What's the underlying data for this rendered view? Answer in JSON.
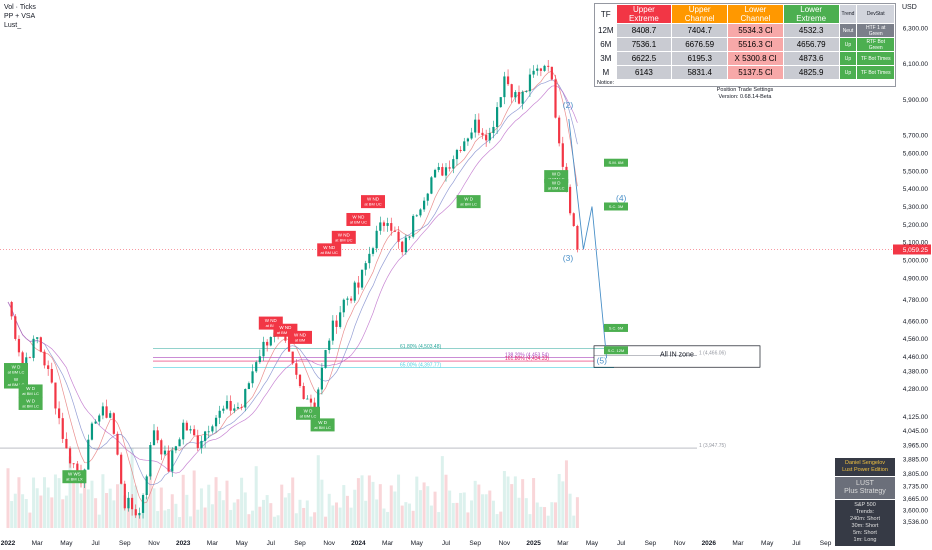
{
  "legend": [
    "Vol · Ticks",
    "PP + VSA",
    "Lust_"
  ],
  "currency": "USD",
  "price_axis": [
    "6,300.00",
    "6,100.00",
    "5,900.00",
    "5,700.00",
    "5,600.00",
    "5,500.00",
    "5,400.00",
    "5,300.00",
    "5,200.00",
    "5,100.00",
    "5,000.00",
    "4,900.00",
    "4,780.00",
    "4,660.00",
    "4,560.00",
    "4,460.00",
    "4,380.00",
    "4,280.00",
    "4,125.00",
    "4,045.00",
    "3,965.00",
    "3,885.00",
    "3,805.00",
    "3,735.00",
    "3,665.00",
    "3,600.00",
    "3,536.00"
  ],
  "price_axis_values": [
    6300,
    6100,
    5900,
    5700,
    5600,
    5500,
    5400,
    5300,
    5200,
    5100,
    5000,
    4900,
    4780,
    4660,
    4560,
    4460,
    4380,
    4280,
    4125,
    4045,
    3965,
    3885,
    3805,
    3735,
    3665,
    3600,
    3536
  ],
  "last_price": "5,059.25",
  "time_axis": [
    "2022",
    "Mar",
    "May",
    "Jul",
    "Sep",
    "Nov",
    "2023",
    "Mar",
    "May",
    "Jul",
    "Sep",
    "Nov",
    "2024",
    "Mar",
    "May",
    "Jul",
    "Sep",
    "Nov",
    "2025",
    "Mar",
    "May",
    "Jul",
    "Sep",
    "Nov",
    "2026",
    "Mar",
    "May",
    "Jul",
    "Sep",
    "Nov"
  ],
  "table": {
    "headers": [
      "TF",
      "Upper Extreme",
      "Upper Channel",
      "Lower Channel",
      "Lower Extreme",
      "Trend",
      "DevStat"
    ],
    "header_colors": [
      "#ffffff",
      "#f23645",
      "#ff9800",
      "#ff9800",
      "#4caf50",
      "#d1d4dc",
      "#d1d4dc"
    ],
    "rows": [
      {
        "tf": "12M",
        "ue": "8408.7",
        "uc": "7404.7",
        "lc": "5534.3 Cl",
        "le": "4532.3",
        "trend": "Neut",
        "dev": "HTF 1 at Green"
      },
      {
        "tf": "6M",
        "ue": "7536.1",
        "uc": "6676.59",
        "lc": "5516.3 Cl",
        "le": "4656.79",
        "trend": "Up",
        "dev": "RTF Bot Green"
      },
      {
        "tf": "3M",
        "ue": "6622.5",
        "uc": "6195.3",
        "lc": "X 5300.8 Cl",
        "le": "4873.6",
        "trend": "Up",
        "dev": "TF Bot Times"
      },
      {
        "tf": "M",
        "ue": "6143",
        "uc": "5831.4",
        "lc": "5137.5 Cl",
        "le": "4825.9",
        "trend": "Up",
        "dev": "TF Bot Times"
      }
    ],
    "notice_label": "Notice:",
    "notice_line1": "Position Trade Settings",
    "notice_line2": "Version: 0.68.14-Beta"
  },
  "info_box": {
    "title1": "Daniel Sengelov",
    "title2": "Lust Power Edition",
    "logo": "LUST",
    "sub": "Plus Strategy",
    "lines": [
      "S&P 500",
      "Trends:",
      "240m: Short",
      "30m: Short",
      "5m: Short",
      "1m: Long"
    ]
  },
  "colors": {
    "bull": "#089981",
    "bear": "#f23645",
    "green_label": "#4caf50",
    "red_label": "#f23645",
    "fib_green": "#26a69a",
    "fib_cyan": "#4dd0e1",
    "fib_purple": "#ab47bc",
    "fib_pink": "#e91e63",
    "projection": "#4a90c8"
  },
  "chart_data": {
    "type": "candlestick",
    "x_range": [
      "2022-01",
      "2026-12"
    ],
    "ylim": [
      3500,
      6400
    ],
    "price_path": [
      [
        "2022-01",
        4766
      ],
      [
        "2022-02",
        4420
      ],
      [
        "2022-03",
        4560
      ],
      [
        "2022-04",
        4300
      ],
      [
        "2022-05",
        3930
      ],
      [
        "2022-06",
        3780
      ],
      [
        "2022-07",
        4130
      ],
      [
        "2022-08",
        4150
      ],
      [
        "2022-09",
        3640
      ],
      [
        "2022-10",
        3580
      ],
      [
        "2022-11",
        4060
      ],
      [
        "2022-12",
        3840
      ],
      [
        "2023-01",
        4080
      ],
      [
        "2023-02",
        3980
      ],
      [
        "2023-03",
        4110
      ],
      [
        "2023-04",
        4170
      ],
      [
        "2023-05",
        4180
      ],
      [
        "2023-06",
        4450
      ],
      [
        "2023-07",
        4590
      ],
      [
        "2023-08",
        4510
      ],
      [
        "2023-09",
        4290
      ],
      [
        "2023-10",
        4190
      ],
      [
        "2023-11",
        4570
      ],
      [
        "2023-12",
        4770
      ],
      [
        "2024-01",
        4850
      ],
      [
        "2024-02",
        5100
      ],
      [
        "2024-03",
        5250
      ],
      [
        "2024-04",
        5030
      ],
      [
        "2024-05",
        5280
      ],
      [
        "2024-06",
        5460
      ],
      [
        "2024-07",
        5520
      ],
      [
        "2024-08",
        5650
      ],
      [
        "2024-09",
        5760
      ],
      [
        "2024-10",
        5700
      ],
      [
        "2024-11",
        6030
      ],
      [
        "2024-12",
        5880
      ],
      [
        "2025-01",
        6040
      ],
      [
        "2025-02",
        6120
      ],
      [
        "2025-03",
        5550
      ],
      [
        "2025-04",
        5059
      ]
    ],
    "labels_red": [
      {
        "text1": "W ND",
        "text2": "at BM UC",
        "date": "2024-02",
        "price": 5330
      },
      {
        "text1": "W ND",
        "text2": "at BM UC",
        "date": "2024-01",
        "price": 5230
      },
      {
        "text1": "W ND",
        "text2": "at BM UC",
        "date": "2023-12",
        "price": 5130
      },
      {
        "text1": "W ND",
        "text2": "at BM UC",
        "date": "2023-11",
        "price": 5060
      },
      {
        "text1": "W ND",
        "text2": "at BM",
        "date": "2023-07",
        "price": 4650
      },
      {
        "text1": "W ND",
        "text2": "at BM UC",
        "date": "2023-08",
        "price": 4610
      },
      {
        "text1": "W ND",
        "text2": "at BM",
        "date": "2023-09",
        "price": 4570
      }
    ],
    "labels_green": [
      {
        "text1": "W D",
        "text2": "at BM LC",
        "date": "2022-01",
        "price": 4390
      },
      {
        "text1": "W",
        "text2": "at BM LC",
        "date": "2022-01",
        "price": 4320
      },
      {
        "text1": "W D",
        "text2": "at BM LC",
        "date": "2022-02",
        "price": 4270
      },
      {
        "text1": "W D",
        "text2": "at BM LC",
        "date": "2022-02",
        "price": 4200
      },
      {
        "text1": "W WS",
        "text2": "at BM LX",
        "date": "2022-05",
        "price": 3790
      },
      {
        "text1": "W D",
        "text2": "at BM LC",
        "date": "2023-09",
        "price": 4145
      },
      {
        "text1": "W D",
        "text2": "at BM LC",
        "date": "2023-10",
        "price": 4080
      },
      {
        "text1": "W D",
        "text2": "at BM LC",
        "date": "2024-08",
        "price": 5330
      },
      {
        "text1": "W D",
        "text2": "at BM LC",
        "date": "2025-02",
        "price": 5470
      },
      {
        "text1": "W D",
        "text2": "at BM LC",
        "date": "2025-02",
        "price": 5420
      }
    ],
    "level_boxes": [
      {
        "text": "S.M. 6M",
        "price": 5545
      },
      {
        "text": "S.C. 3M",
        "price": 5300
      },
      {
        "text": "S.C. 6M",
        "price": 4620
      },
      {
        "text": "S.C. 12M",
        "price": 4495
      }
    ],
    "fib_levels": [
      {
        "label": "61.80% (4,503.48)",
        "price": 4503.48,
        "color": "fib_green"
      },
      {
        "label": "138.20% (4,453.54)",
        "price": 4453.54,
        "color": "fib_purple"
      },
      {
        "label": "161.80% (4,434.33)",
        "price": 4434.33,
        "color": "fib_pink"
      },
      {
        "label": "65.00% (4,397.77)",
        "price": 4397.77,
        "color": "fib_cyan"
      },
      {
        "label": "1 (4,466.06)",
        "price": 4466.06,
        "color": "grey"
      },
      {
        "label": "1 (3,947.75)",
        "price": 3947.75,
        "color": "grey"
      }
    ],
    "waves": [
      {
        "label": "(2)",
        "date": "2025-03",
        "price": 5850
      },
      {
        "label": "(3)",
        "date": "2025-03",
        "price": 4995
      },
      {
        "label": "(4)",
        "date": "2025-05",
        "price": 5330
      },
      {
        "label": "(5)",
        "date": "2025-06",
        "price": 4420
      }
    ],
    "projection_path": [
      [
        "2025-03",
        5790
      ],
      [
        "2025-04",
        5060
      ],
      [
        "2025-05",
        5300
      ],
      [
        "2025-06",
        4450
      ]
    ],
    "zone_label": "All IN zone",
    "zone_range": [
      4400,
      4520
    ]
  }
}
